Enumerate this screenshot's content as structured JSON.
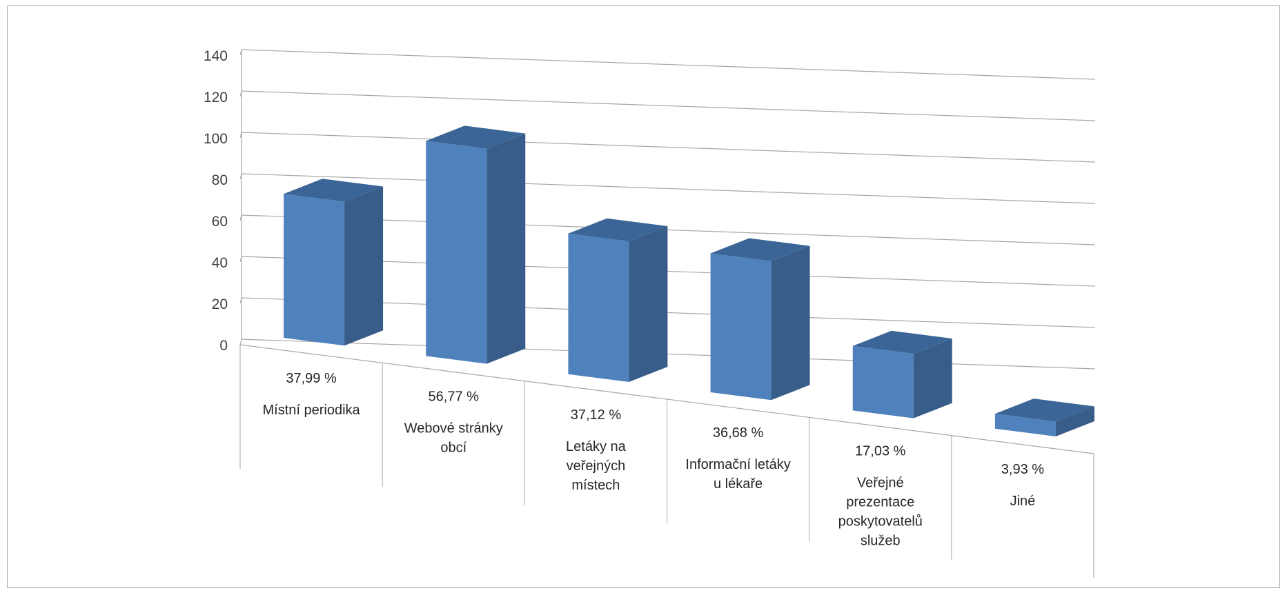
{
  "chart_data": {
    "type": "bar",
    "variant": "3d-column",
    "categories": [
      [
        "Místní periodika"
      ],
      [
        "Webové stránky",
        "obcí"
      ],
      [
        "Letáky na",
        "veřejných",
        "místech"
      ],
      [
        "Informační letáky",
        "u lékaře"
      ],
      [
        "Veřejné",
        "prezentace",
        "poskytovatelů",
        "služeb"
      ],
      [
        "Jiné"
      ]
    ],
    "data_labels": [
      "37,99 %",
      "56,77 %",
      "37,12 %",
      "36,68 %",
      "17,03 %",
      "3,93 %"
    ],
    "values": [
      87,
      130,
      85,
      84,
      39,
      9
    ],
    "ylim": [
      0,
      140
    ],
    "yticks": [
      0,
      20,
      40,
      60,
      80,
      100,
      120,
      140
    ],
    "grid": true,
    "legend": "none",
    "colors": {
      "front": "#4f81bd",
      "side": "#385d8a",
      "top": "#3a6596",
      "grid": "#a6a6a6",
      "frame": "#a6a6a6"
    }
  }
}
